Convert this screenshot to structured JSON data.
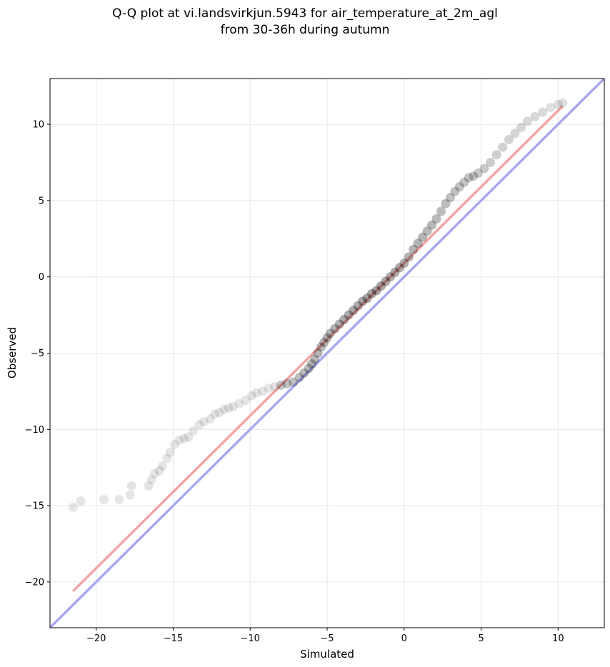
{
  "chart_data": {
    "type": "scatter",
    "title_line1": "Q-Q plot at vi.landsvirkjun.5943 for air_temperature_at_2m_agl",
    "title_line2": "from 30-36h during autumn",
    "xlabel": "Simulated",
    "ylabel": "Observed",
    "xlim": [
      -23,
      13
    ],
    "ylim": [
      -23,
      13
    ],
    "xticks": [
      -20,
      -15,
      -10,
      -5,
      0,
      5,
      10
    ],
    "yticks": [
      -20,
      -15,
      -10,
      -5,
      0,
      5,
      10
    ],
    "tick_labels": [
      "−20",
      "−15",
      "−10",
      "−5",
      "0",
      "5",
      "10"
    ],
    "grid": true,
    "reference_line": {
      "x": [
        -23,
        13
      ],
      "y": [
        -23,
        13
      ],
      "color": "#a8a8f0"
    },
    "fit_line": {
      "x": [
        -21.5,
        10.3
      ],
      "y": [
        -20.6,
        11.2
      ],
      "color": "#f4a4a4"
    },
    "point_color": "#000000",
    "points": {
      "x": [
        -21.5,
        -21.0,
        -19.5,
        -18.5,
        -17.8,
        -17.7,
        -16.6,
        -16.4,
        -16.2,
        -15.9,
        -15.7,
        -15.4,
        -15.2,
        -14.9,
        -14.6,
        -14.3,
        -14.0,
        -13.7,
        -13.3,
        -13.0,
        -12.6,
        -12.3,
        -12.0,
        -11.7,
        -11.4,
        -11.1,
        -10.7,
        -10.3,
        -9.9,
        -9.6,
        -9.2,
        -8.8,
        -8.4,
        -8.0,
        -7.6,
        -7.2,
        -6.8,
        -6.5,
        -6.2,
        -6.0,
        -5.8,
        -5.6,
        -5.4,
        -5.2,
        -5.0,
        -4.8,
        -4.5,
        -4.2,
        -3.9,
        -3.6,
        -3.3,
        -3.0,
        -2.7,
        -2.4,
        -2.1,
        -1.8,
        -1.5,
        -1.2,
        -0.9,
        -0.6,
        -0.3,
        0.0,
        0.3,
        0.6,
        0.9,
        1.2,
        1.5,
        1.8,
        2.1,
        2.4,
        2.7,
        3.0,
        3.3,
        3.6,
        3.9,
        4.2,
        4.5,
        4.8,
        5.2,
        5.6,
        6.0,
        6.4,
        6.8,
        7.2,
        7.6,
        8.0,
        8.5,
        9.0,
        9.5,
        10.0,
        10.3
      ],
      "y": [
        -15.1,
        -14.7,
        -14.6,
        -14.6,
        -14.3,
        -13.7,
        -13.7,
        -13.3,
        -12.9,
        -12.7,
        -12.4,
        -11.9,
        -11.5,
        -11.0,
        -10.7,
        -10.6,
        -10.5,
        -10.1,
        -9.7,
        -9.5,
        -9.3,
        -9.0,
        -8.9,
        -8.7,
        -8.6,
        -8.5,
        -8.3,
        -8.1,
        -7.8,
        -7.6,
        -7.5,
        -7.3,
        -7.2,
        -7.1,
        -7.0,
        -6.9,
        -6.6,
        -6.3,
        -6.0,
        -5.7,
        -5.4,
        -5.0,
        -4.6,
        -4.3,
        -4.0,
        -3.7,
        -3.4,
        -3.1,
        -2.8,
        -2.5,
        -2.2,
        -1.9,
        -1.6,
        -1.4,
        -1.1,
        -0.9,
        -0.6,
        -0.3,
        0.0,
        0.3,
        0.6,
        0.9,
        1.3,
        1.8,
        2.2,
        2.6,
        3.0,
        3.4,
        3.8,
        4.3,
        4.8,
        5.2,
        5.6,
        5.9,
        6.2,
        6.5,
        6.6,
        6.8,
        7.1,
        7.5,
        8.0,
        8.5,
        9.0,
        9.4,
        9.8,
        10.2,
        10.5,
        10.8,
        11.1,
        11.3,
        11.4
      ]
    }
  }
}
